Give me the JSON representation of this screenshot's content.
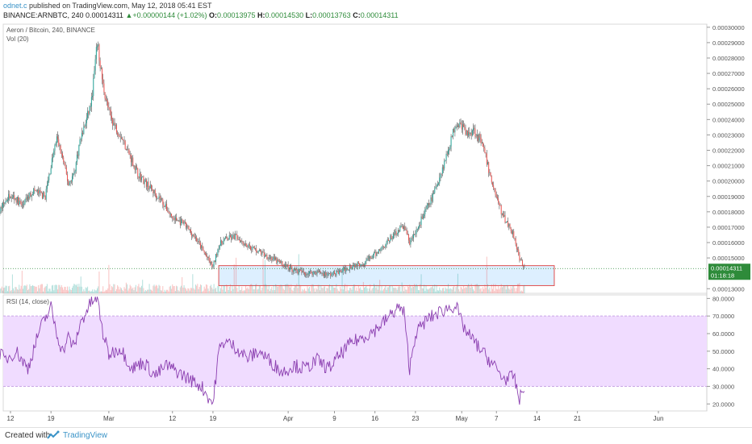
{
  "header": {
    "author": "odnet.c",
    "published": "published on TradingView.com, May 12, 2018 05:41 EST",
    "symbol": "BINANCE:ARNBTC, 240",
    "last": "0.00014311",
    "change": "+0.00000144 (+1.02%)",
    "o_label": "O:",
    "o_value": "0.00013975",
    "h_label": "H:",
    "h_value": "0.00014530",
    "l_label": "L:",
    "l_value": "0.00013763",
    "c_label": "C:",
    "c_value": "0.00014311"
  },
  "footer": {
    "created_with": "Created with",
    "brand": "TradingView"
  },
  "colors": {
    "up": "#26a69a",
    "down": "#ef5350",
    "wick": "#555555",
    "rsi_line": "#8b3fb0",
    "rsi_band": "#f0dcff",
    "box_fill": "#ddefff",
    "box_border": "#e05050",
    "price_tag": "#2e8b3a"
  },
  "chart_data": [
    {
      "type": "candlestick",
      "title": "Aeron / Bitcoin, 240, BINANCE",
      "subtitle": "Vol (20)",
      "x_ticks": [
        "12",
        "19",
        "Mar",
        "12",
        "19",
        "Apr",
        "9",
        "16",
        "23",
        "May",
        "7",
        "14",
        "21",
        "Jun"
      ],
      "y_ticks": [
        "0.00030000",
        "0.00029000",
        "0.00028000",
        "0.00027000",
        "0.00026000",
        "0.00025000",
        "0.00024000",
        "0.00023000",
        "0.00022000",
        "0.00021000",
        "0.00020000",
        "0.00019000",
        "0.00018000",
        "0.00017000",
        "0.00016000",
        "0.00015000",
        "0.00013000"
      ],
      "ylim": [
        0.000127,
        0.000302
      ],
      "last_price_label": "0.00014311",
      "countdown": "01:18:18",
      "approx_close_path": [
        [
          "Feb 05",
          0.00019
        ],
        [
          "Feb 08",
          0.000185
        ],
        [
          "Feb 10",
          0.00018
        ],
        [
          "Feb 12",
          0.000192
        ],
        [
          "Feb 14",
          0.000184
        ],
        [
          "Feb 16",
          0.000194
        ],
        [
          "Feb 18",
          0.00019
        ],
        [
          "Feb 19",
          0.00021
        ],
        [
          "Feb 20",
          0.000228
        ],
        [
          "Feb 21",
          0.000215
        ],
        [
          "Feb 22",
          0.000198
        ],
        [
          "Feb 23",
          0.000205
        ],
        [
          "Feb 24",
          0.000226
        ],
        [
          "Feb 25",
          0.000238
        ],
        [
          "Feb 26",
          0.000252
        ],
        [
          "Feb 27",
          0.00029
        ],
        [
          "Feb 28",
          0.000262
        ],
        [
          "Mar 01",
          0.000245
        ],
        [
          "Mar 02",
          0.000236
        ],
        [
          "Mar 03",
          0.00023
        ],
        [
          "Mar 04",
          0.000222
        ],
        [
          "Mar 06",
          0.000205
        ],
        [
          "Mar 08",
          0.000196
        ],
        [
          "Mar 10",
          0.000188
        ],
        [
          "Mar 12",
          0.000176
        ],
        [
          "Mar 14",
          0.000172
        ],
        [
          "Mar 16",
          0.000163
        ],
        [
          "Mar 18",
          0.00015
        ],
        [
          "Mar 19",
          0.000144
        ],
        [
          "Mar 20",
          0.000158
        ],
        [
          "Mar 21",
          0.000162
        ],
        [
          "Mar 23",
          0.000164
        ],
        [
          "Mar 25",
          0.000158
        ],
        [
          "Mar 27",
          0.000154
        ],
        [
          "Mar 29",
          0.00015
        ],
        [
          "Mar 31",
          0.000146
        ],
        [
          "Apr 02",
          0.000142
        ],
        [
          "Apr 04",
          0.00014
        ],
        [
          "Apr 06",
          0.000141
        ],
        [
          "Apr 08",
          0.000139
        ],
        [
          "Apr 10",
          0.000141
        ],
        [
          "Apr 12",
          0.000145
        ],
        [
          "Apr 14",
          0.000147
        ],
        [
          "Apr 16",
          0.000152
        ],
        [
          "Apr 18",
          0.00016
        ],
        [
          "Apr 20",
          0.000168
        ],
        [
          "Apr 21",
          0.000171
        ],
        [
          "Apr 22",
          0.00016
        ],
        [
          "Apr 23",
          0.000166
        ],
        [
          "Apr 24",
          0.000175
        ],
        [
          "Apr 26",
          0.00019
        ],
        [
          "Apr 28",
          0.000212
        ],
        [
          "Apr 30",
          0.000238
        ],
        [
          "May 01",
          0.000236
        ],
        [
          "May 02",
          0.00023
        ],
        [
          "May 03",
          0.000234
        ],
        [
          "May 04",
          0.000228
        ],
        [
          "May 05",
          0.000218
        ],
        [
          "May 06",
          0.000202
        ],
        [
          "May 07",
          0.00019
        ],
        [
          "May 08",
          0.000178
        ],
        [
          "May 09",
          0.000172
        ],
        [
          "May 10",
          0.000165
        ],
        [
          "May 11",
          0.00015
        ],
        [
          "May 12",
          0.000143
        ]
      ],
      "annotation_box": {
        "price_range": [
          0.000132,
          0.000145
        ],
        "date_range": [
          "Mar 20",
          "May 17"
        ]
      }
    },
    {
      "type": "line",
      "title": "RSI (14, close)",
      "y_ticks": [
        "80.0000",
        "70.0000",
        "60.0000",
        "50.0000",
        "40.0000",
        "30.0000",
        "20.0000"
      ],
      "ylim": [
        16,
        82
      ],
      "band": [
        30,
        70
      ],
      "approx_values": [
        [
          "Feb 05",
          48
        ],
        [
          "Feb 07",
          42
        ],
        [
          "Feb 09",
          55
        ],
        [
          "Feb 11",
          45
        ],
        [
          "Feb 13",
          50
        ],
        [
          "Feb 15",
          40
        ],
        [
          "Feb 17",
          62
        ],
        [
          "Feb 19",
          75
        ],
        [
          "Feb 20",
          60
        ],
        [
          "Feb 21",
          50
        ],
        [
          "Feb 22",
          58
        ],
        [
          "Feb 23",
          52
        ],
        [
          "Feb 24",
          65
        ],
        [
          "Feb 25",
          72
        ],
        [
          "Feb 26",
          78
        ],
        [
          "Feb 27",
          80
        ],
        [
          "Feb 28",
          60
        ],
        [
          "Mar 01",
          48
        ],
        [
          "Mar 03",
          52
        ],
        [
          "Mar 05",
          40
        ],
        [
          "Mar 07",
          44
        ],
        [
          "Mar 09",
          36
        ],
        [
          "Mar 11",
          42
        ],
        [
          "Mar 13",
          38
        ],
        [
          "Mar 15",
          34
        ],
        [
          "Mar 17",
          30
        ],
        [
          "Mar 19",
          20
        ],
        [
          "Mar 20",
          50
        ],
        [
          "Mar 21",
          56
        ],
        [
          "Mar 23",
          52
        ],
        [
          "Mar 25",
          46
        ],
        [
          "Mar 27",
          50
        ],
        [
          "Mar 29",
          44
        ],
        [
          "Mar 31",
          38
        ],
        [
          "Apr 02",
          42
        ],
        [
          "Apr 04",
          40
        ],
        [
          "Apr 06",
          45
        ],
        [
          "Apr 08",
          40
        ],
        [
          "Apr 10",
          48
        ],
        [
          "Apr 12",
          55
        ],
        [
          "Apr 14",
          58
        ],
        [
          "Apr 16",
          62
        ],
        [
          "Apr 18",
          68
        ],
        [
          "Apr 20",
          75
        ],
        [
          "Apr 21",
          72
        ],
        [
          "Apr 22",
          40
        ],
        [
          "Apr 23",
          60
        ],
        [
          "Apr 25",
          68
        ],
        [
          "Apr 27",
          72
        ],
        [
          "Apr 29",
          75
        ],
        [
          "Apr 30",
          76
        ],
        [
          "May 01",
          66
        ],
        [
          "May 02",
          60
        ],
        [
          "May 04",
          52
        ],
        [
          "May 06",
          44
        ],
        [
          "May 07",
          40
        ],
        [
          "May 08",
          35
        ],
        [
          "May 09",
          34
        ],
        [
          "May 10",
          36
        ],
        [
          "May 11",
          22
        ],
        [
          "May 12",
          33
        ]
      ]
    }
  ]
}
